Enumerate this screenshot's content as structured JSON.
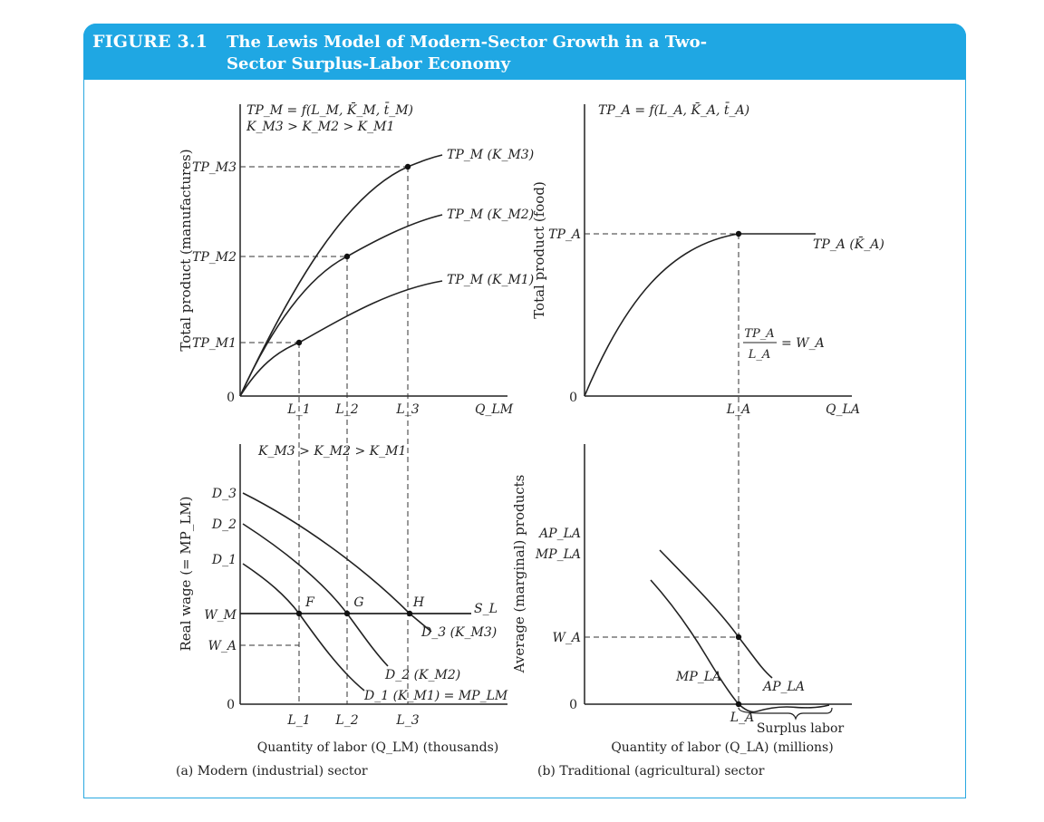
{
  "figure": {
    "label": "FIGURE 3.1",
    "title": "The Lewis Model of Modern-Sector Growth in a Two-Sector Surplus-Labor Economy",
    "colors": {
      "banner": "#1fa7e3",
      "frame": "#29a8e0",
      "ink": "#222222"
    }
  },
  "panel_a": {
    "top": {
      "ylabel": "Total product (manufactures)",
      "eq_line1": "TP_M = f(L_M, K̄_M, t̄_M)",
      "eq_line2": "K_M3 > K_M2 > K_M1",
      "origin": "0",
      "ytick_tp3": "TP_M3",
      "ytick_tp2": "TP_M2",
      "ytick_tp1": "TP_M1",
      "xtick_l1": "L_1",
      "xtick_l2": "L_2",
      "xtick_l3": "L_3",
      "xaxis_name": "Q_LM",
      "curve3": "TP_M (K_M3)",
      "curve2": "TP_M (K_M2)",
      "curve1": "TP_M (K_M1)"
    },
    "bottom": {
      "ylabel": "Real wage (= MP_LM)",
      "relation": "K_M3 > K_M2 > K_M1",
      "origin": "0",
      "ytick_d3": "D_3",
      "ytick_d2": "D_2",
      "ytick_d1": "D_1",
      "ytick_wm": "W_M",
      "ytick_wa": "W_A",
      "point_f": "F",
      "point_g": "G",
      "point_h": "H",
      "supply": "S_L",
      "curve_d3": "D_3 (K_M3)",
      "curve_d2": "D_2 (K_M2)",
      "curve_d1": "D_1 (K_M1) = MP_LM",
      "xtick_l1": "L_1",
      "xtick_l2": "L_2",
      "xtick_l3": "L_3",
      "xlabel": "Quantity of labor (Q_LM) (thousands)"
    },
    "caption": "(a) Modern (industrial) sector"
  },
  "panel_b": {
    "top": {
      "ylabel": "Total product (food)",
      "eq": "TP_A = f(L_A, K̄_A, t̄_A)",
      "origin": "0",
      "ytick_tpa": "TP_A",
      "curve": "TP_A (K̄_A)",
      "ratio_num": "TP_A",
      "ratio_den": "L_A",
      "ratio_eq": "= W_A",
      "xtick_la": "L_A",
      "xaxis_name": "Q_LA"
    },
    "bottom": {
      "ylabel": "Average (marginal) products",
      "ytick_ap": "AP_LA",
      "ytick_mp": "MP_LA",
      "ytick_wa": "W_A",
      "origin": "0",
      "curve_mp": "MP_LA",
      "curve_ap": "AP_LA",
      "xtick_la": "L_A",
      "surplus": "Surplus labor",
      "xlabel": "Quantity of labor (Q_LA) (millions)"
    },
    "caption": "(b) Traditional (agricultural) sector"
  }
}
